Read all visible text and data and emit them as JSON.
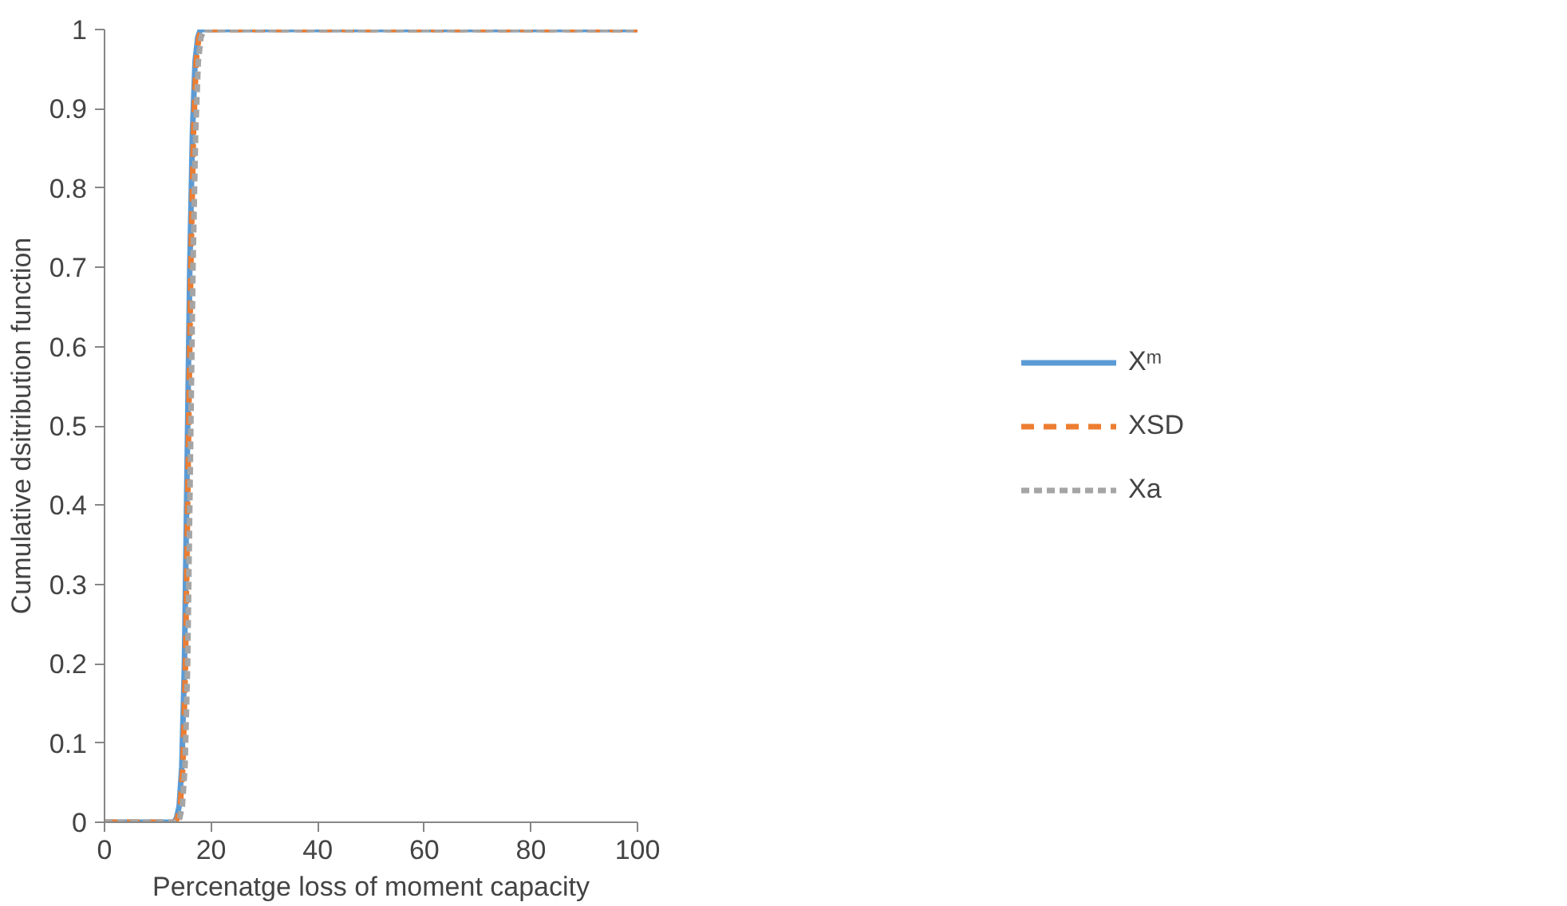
{
  "chart_data": {
    "type": "line",
    "xlabel": "Percenatge loss of moment capacity",
    "ylabel": "Cumulative dsitribution function",
    "xlim": [
      0,
      100
    ],
    "ylim": [
      0,
      1
    ],
    "xticks": [
      0,
      20,
      40,
      60,
      80,
      100
    ],
    "yticks": [
      0,
      0.1,
      0.2,
      0.3,
      0.4,
      0.5,
      0.6,
      0.7,
      0.8,
      0.9,
      1
    ],
    "grid": false,
    "legend": "right",
    "series": [
      {
        "name": "Xᵐ",
        "color": "#5b9bd5",
        "line_style": "solid",
        "x": [
          0,
          5,
          10,
          13,
          13.5,
          14,
          14.5,
          15,
          15.5,
          16,
          16.5,
          17,
          17.5,
          18,
          20,
          40,
          60,
          80,
          100
        ],
        "values": [
          0,
          0,
          0,
          0,
          0.005,
          0.02,
          0.07,
          0.2,
          0.45,
          0.7,
          0.87,
          0.96,
          0.99,
          1,
          1,
          1,
          1,
          1,
          1
        ]
      },
      {
        "name": "XSD",
        "color": "#ed7d31",
        "line_style": "dashed",
        "x": [
          0,
          5,
          10,
          13.2,
          13.7,
          14.2,
          14.7,
          15.2,
          15.7,
          16.2,
          16.7,
          17.2,
          17.7,
          18.2,
          20,
          40,
          60,
          80,
          100
        ],
        "values": [
          0,
          0,
          0,
          0,
          0.005,
          0.02,
          0.07,
          0.2,
          0.45,
          0.7,
          0.87,
          0.96,
          0.99,
          1,
          1,
          1,
          1,
          1,
          1
        ]
      },
      {
        "name": "Xa",
        "color": "#a5a5a5",
        "line_style": "dotted",
        "x": [
          0,
          5,
          10,
          13.6,
          14.1,
          14.6,
          15.1,
          15.6,
          16.1,
          16.6,
          17.1,
          17.6,
          18.1,
          18.7,
          20,
          40,
          60,
          80,
          100
        ],
        "values": [
          0,
          0,
          0,
          0,
          0.005,
          0.02,
          0.07,
          0.2,
          0.45,
          0.7,
          0.87,
          0.96,
          0.99,
          1,
          1,
          1,
          1,
          1,
          1
        ]
      }
    ]
  }
}
